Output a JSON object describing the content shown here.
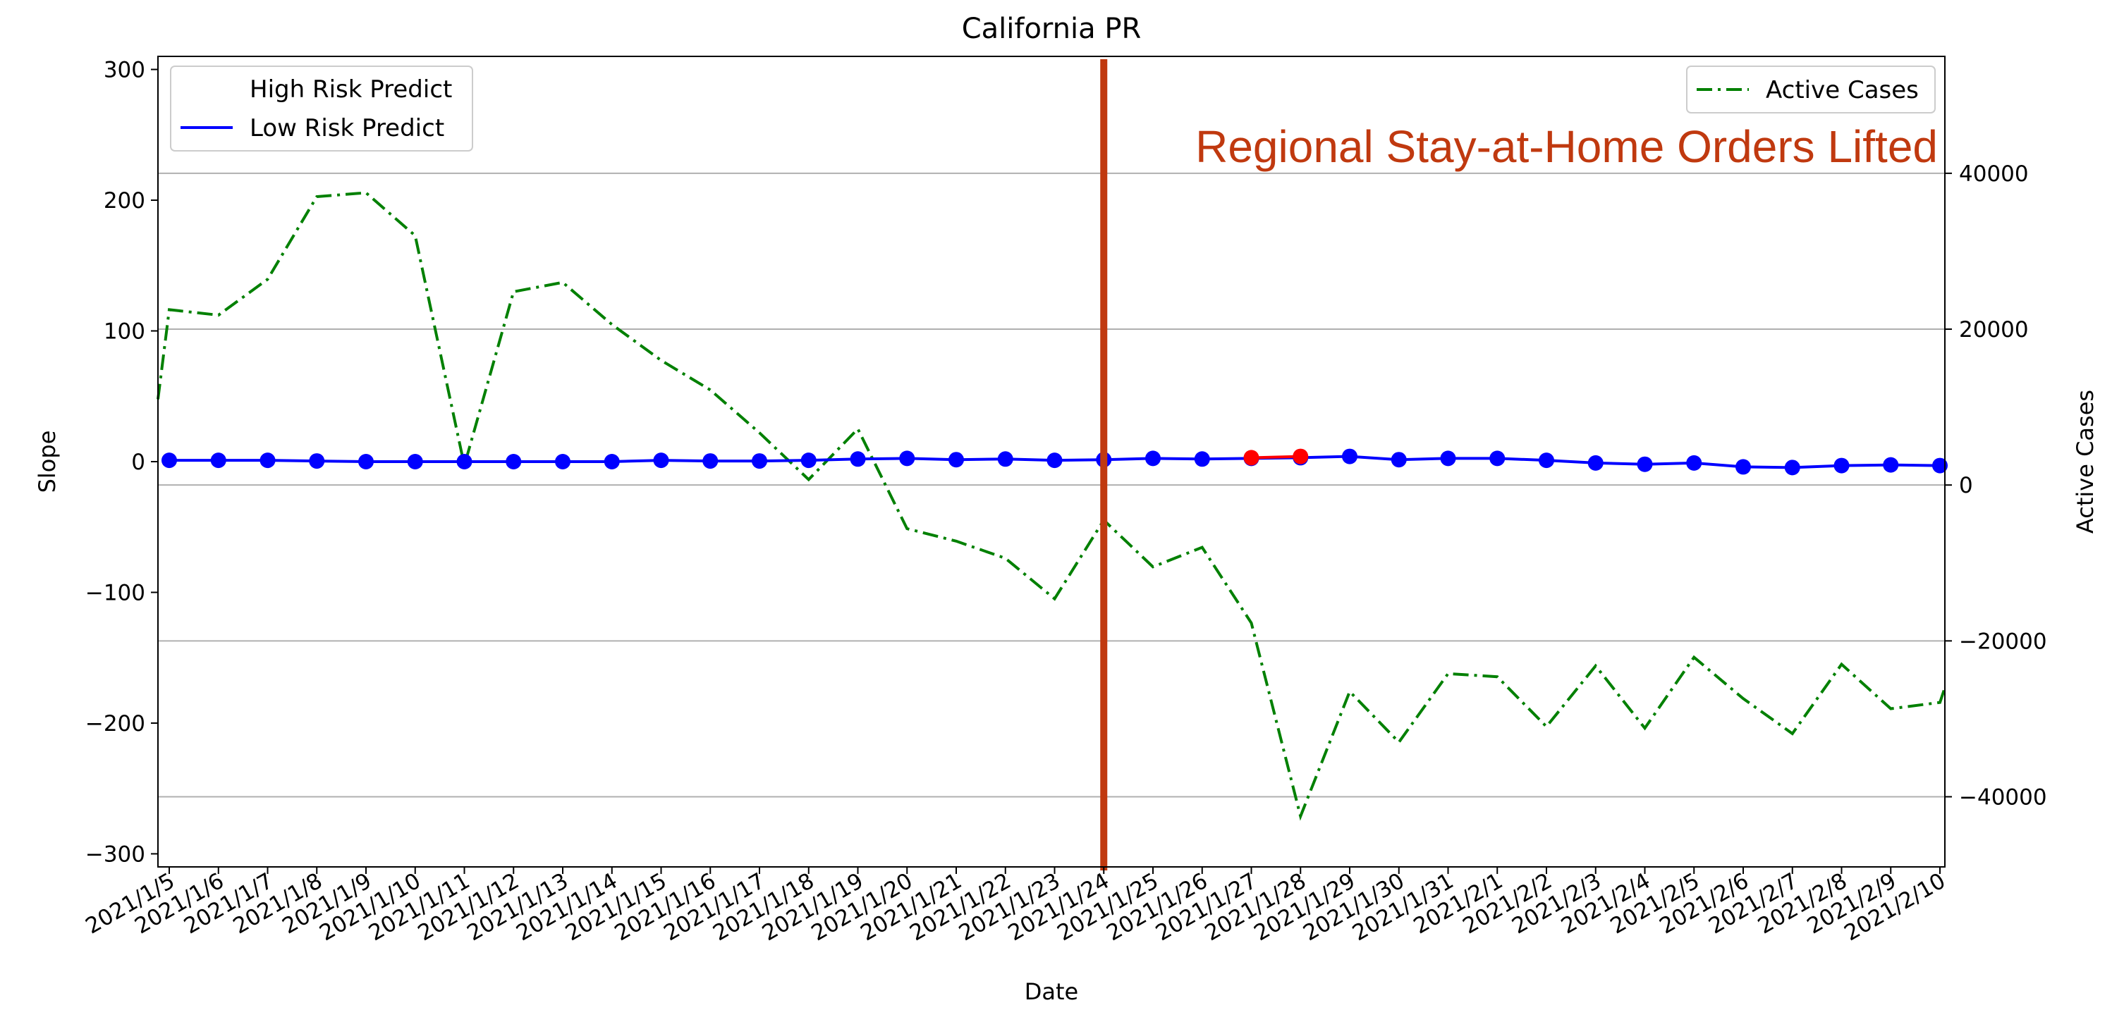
{
  "chart_data": {
    "type": "line",
    "title": "California PR",
    "xlabel": "Date",
    "ylabel": "Slope",
    "y2label": "Active Cases",
    "ylim": [
      -310,
      310
    ],
    "y2lim": [
      -49000,
      55000
    ],
    "y_ticks": [
      300,
      200,
      100,
      0,
      -100,
      -200,
      -300
    ],
    "y_tick_labels": [
      "300",
      "200",
      "100",
      "0",
      "−100",
      "−200",
      "−300"
    ],
    "y2_ticks": [
      40000,
      20000,
      0,
      -20000,
      -40000
    ],
    "y2_tick_labels": [
      "40000",
      "20000",
      "0",
      "−20000",
      "−40000"
    ],
    "grid": "horizontal lines at right-axis ticks",
    "x": [
      "2021/1/5",
      "2021/1/6",
      "2021/1/7",
      "2021/1/8",
      "2021/1/9",
      "2021/1/10",
      "2021/1/11",
      "2021/1/12",
      "2021/1/13",
      "2021/1/14",
      "2021/1/15",
      "2021/1/16",
      "2021/1/17",
      "2021/1/18",
      "2021/1/19",
      "2021/1/20",
      "2021/1/21",
      "2021/1/22",
      "2021/1/23",
      "2021/1/24",
      "2021/1/25",
      "2021/1/26",
      "2021/1/27",
      "2021/1/28",
      "2021/1/29",
      "2021/1/30",
      "2021/1/31",
      "2021/2/1",
      "2021/2/2",
      "2021/2/3",
      "2021/2/4",
      "2021/2/5",
      "2021/2/6",
      "2021/2/7",
      "2021/2/8",
      "2021/2/9",
      "2021/2/10"
    ],
    "x_start_value": 11000,
    "x_end_value": -26000,
    "series": [
      {
        "name": "High Risk Predict",
        "axis": "left",
        "color": "#ff0000",
        "style": "dots only",
        "points": [
          {
            "x": "2021/1/27",
            "y": 3
          },
          {
            "x": "2021/1/28",
            "y": 4
          }
        ]
      },
      {
        "name": "Low Risk Predict",
        "axis": "left",
        "color": "#0000ff",
        "style": "solid line with dots",
        "values": [
          1,
          1,
          1,
          0.5,
          0,
          0,
          0,
          0,
          0,
          0,
          1,
          0.5,
          0.5,
          1,
          2,
          2.5,
          1.5,
          2,
          1,
          1.5,
          2.5,
          2,
          2.5,
          3,
          4,
          1.5,
          2.5,
          2.5,
          1,
          -1,
          -2,
          -1,
          -4,
          -4.5,
          -3,
          -2.5,
          -3
        ]
      },
      {
        "name": "Active Cases",
        "axis": "right",
        "color": "#008000",
        "style": "dash-dot line",
        "values": [
          22500,
          21800,
          26400,
          37000,
          37500,
          32000,
          2500,
          24800,
          26000,
          20600,
          16000,
          12200,
          6700,
          700,
          7200,
          -5600,
          -7200,
          -9400,
          -14600,
          -4500,
          -10500,
          -8000,
          -17700,
          -42500,
          -26500,
          -33000,
          -24200,
          -24600,
          -31000,
          -23200,
          -31200,
          -22100,
          -27400,
          -31900,
          -23000,
          -28700,
          -27900
        ]
      }
    ],
    "legend_left": {
      "placement": "top-left",
      "entries": [
        "High Risk Predict",
        "Low Risk Predict"
      ]
    },
    "legend_right": {
      "placement": "top-right",
      "entries": [
        "Active Cases"
      ]
    },
    "annotation": {
      "text": "Regional Stay-at-Home Orders Lifted",
      "x": "2021/1/24",
      "color": "#c0390f"
    }
  }
}
